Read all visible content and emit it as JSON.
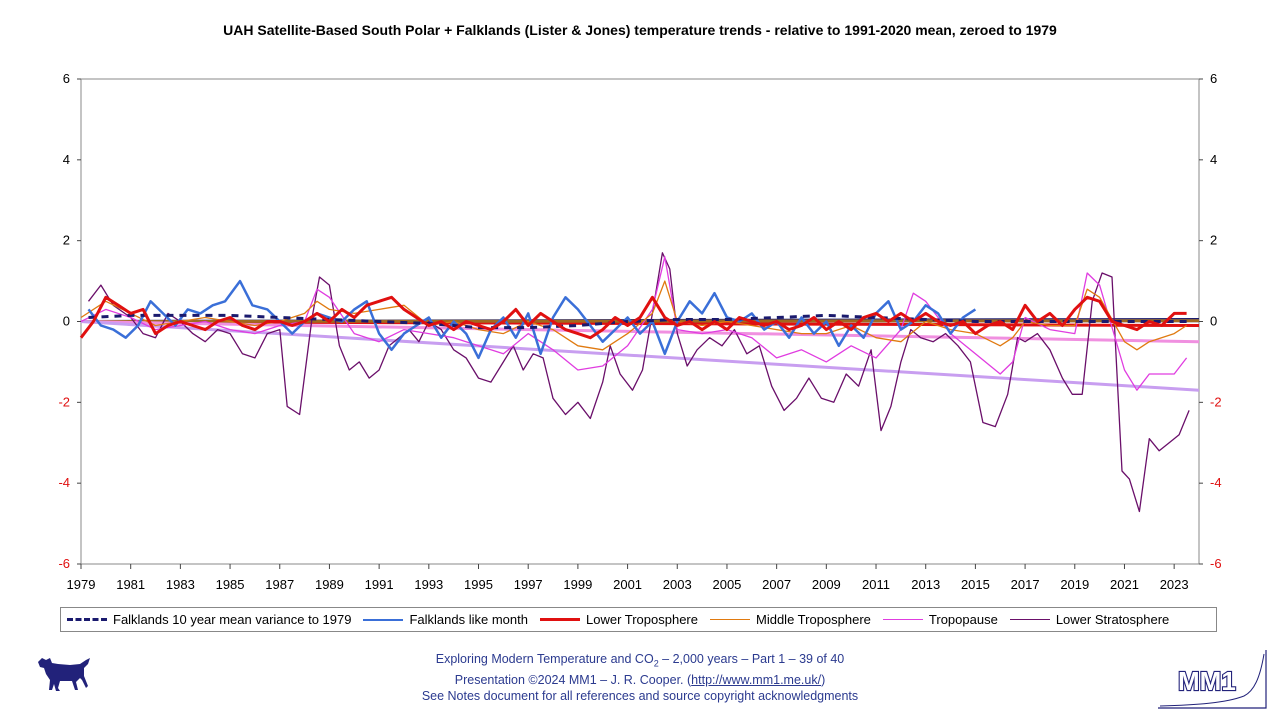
{
  "chart_data": {
    "type": "line",
    "title": "UAH Satellite-Based South Polar + Falklands (Lister & Jones) temperature trends - relative to 1991-2020 mean, zeroed to 1979",
    "xlim": [
      1979,
      2024
    ],
    "ylim": [
      -6,
      6
    ],
    "x_ticks": [
      "1979",
      "1981",
      "1983",
      "1985",
      "1987",
      "1989",
      "1991",
      "1993",
      "1995",
      "1997",
      "1999",
      "2001",
      "2003",
      "2005",
      "2007",
      "2009",
      "2011",
      "2013",
      "2015",
      "2017",
      "2019",
      "2021",
      "2023"
    ],
    "y_ticks_left": [
      "6",
      "4",
      "2",
      "0",
      "-2",
      "-4",
      "-6"
    ],
    "y_ticks_right": [
      "6",
      "4",
      "2",
      "0",
      "-2",
      "-4",
      "-6"
    ],
    "grid": "vertical",
    "legend_position": "bottom",
    "series": [
      {
        "name": "Falklands 10 year mean variance to 1979",
        "color": "#1a1a6e",
        "style": "dashed",
        "width": 3,
        "x": [
          1979.3,
          1981,
          1983,
          1985,
          1987,
          1989,
          1991,
          1993,
          1995,
          1997,
          1999,
          2001,
          2003,
          2005,
          2007,
          2009,
          2011,
          2013,
          2015,
          2017,
          2019,
          2021,
          2023.5
        ],
        "y": [
          0.1,
          0.15,
          0.15,
          0.15,
          0.1,
          0.05,
          0.0,
          -0.05,
          -0.15,
          -0.15,
          -0.1,
          0.0,
          0.05,
          0.05,
          0.1,
          0.15,
          0.1,
          0.05,
          0.0,
          0.0,
          0.0,
          0.0,
          0.0
        ]
      },
      {
        "name": "Falklands like month",
        "color": "#3a6fd8",
        "style": "solid",
        "width": 2.5,
        "x": [
          1979.3,
          1979.8,
          1980.3,
          1980.8,
          1981.3,
          1981.8,
          1982.3,
          1982.8,
          1983.3,
          1983.8,
          1984.3,
          1984.8,
          1985.4,
          1985.9,
          1986.5,
          1987,
          1987.5,
          1988,
          1988.5,
          1989,
          1989.5,
          1990,
          1990.5,
          1991,
          1991.5,
          1992,
          1992.5,
          1993,
          1993.5,
          1994,
          1994.5,
          1995,
          1995.5,
          1996,
          1996.5,
          1997,
          1997.5,
          1998,
          1998.5,
          1999,
          1999.5,
          2000,
          2000.5,
          2001,
          2001.5,
          2002,
          2002.5,
          2003,
          2003.5,
          2004,
          2004.5,
          2005,
          2005.5,
          2006,
          2006.5,
          2007,
          2007.5,
          2008,
          2008.5,
          2009,
          2009.5,
          2010,
          2010.5,
          2011,
          2011.5,
          2012,
          2012.5,
          2013,
          2013.5,
          2014,
          2014.5,
          2015
        ],
        "y": [
          0.3,
          -0.1,
          -0.2,
          -0.4,
          -0.1,
          0.5,
          0.2,
          -0.1,
          0.3,
          0.2,
          0.4,
          0.5,
          1.0,
          0.4,
          0.3,
          0.0,
          -0.3,
          0.0,
          0.2,
          0.1,
          0.0,
          0.3,
          0.5,
          -0.3,
          -0.7,
          -0.3,
          -0.1,
          0.1,
          -0.4,
          0.0,
          -0.3,
          -0.9,
          -0.2,
          0.1,
          -0.4,
          0.2,
          -0.8,
          0.1,
          0.6,
          0.3,
          -0.1,
          -0.5,
          -0.2,
          0.1,
          -0.3,
          0.0,
          -0.8,
          0.0,
          0.5,
          0.2,
          0.7,
          0.1,
          0.0,
          0.2,
          -0.2,
          0.0,
          -0.4,
          0.1,
          -0.3,
          0.0,
          -0.6,
          -0.1,
          -0.4,
          0.2,
          0.5,
          -0.2,
          0.0,
          0.4,
          0.2,
          -0.3,
          0.1,
          0.3
        ]
      },
      {
        "name": "Lower Troposphere",
        "color": "#e01010",
        "style": "solid",
        "width": 3,
        "x": [
          1979,
          1979.5,
          1980,
          1980.5,
          1981,
          1981.5,
          1982,
          1982.5,
          1983,
          1983.5,
          1984,
          1984.5,
          1985,
          1985.5,
          1986,
          1986.5,
          1987,
          1987.5,
          1988,
          1988.5,
          1989,
          1989.5,
          1990,
          1990.5,
          1991,
          1991.5,
          1992,
          1992.5,
          1993,
          1993.5,
          1994,
          1994.5,
          1995,
          1995.5,
          1996,
          1996.5,
          1997,
          1997.5,
          1998,
          1998.5,
          1999,
          1999.5,
          2000,
          2000.5,
          2001,
          2001.5,
          2002,
          2002.5,
          2003,
          2003.5,
          2004,
          2004.5,
          2005,
          2005.5,
          2006,
          2006.5,
          2007,
          2007.5,
          2008,
          2008.5,
          2009,
          2009.5,
          2010,
          2010.5,
          2011,
          2011.5,
          2012,
          2012.5,
          2013,
          2013.5,
          2014,
          2014.5,
          2015,
          2015.5,
          2016,
          2016.5,
          2017,
          2017.5,
          2018,
          2018.5,
          2019,
          2019.5,
          2020,
          2020.5,
          2021,
          2021.5,
          2022,
          2022.5,
          2023,
          2023.5
        ],
        "y": [
          -0.4,
          0.0,
          0.6,
          0.4,
          0.2,
          0.3,
          -0.3,
          -0.1,
          0.0,
          -0.1,
          -0.2,
          0.0,
          0.1,
          -0.1,
          -0.2,
          0.0,
          0.0,
          -0.1,
          0.0,
          0.2,
          0.0,
          0.3,
          0.1,
          0.4,
          0.5,
          0.6,
          0.3,
          0.1,
          -0.1,
          0.0,
          -0.2,
          0.0,
          -0.1,
          -0.2,
          0.0,
          0.3,
          -0.1,
          0.2,
          0.0,
          -0.2,
          -0.3,
          -0.4,
          -0.2,
          0.1,
          -0.1,
          0.1,
          0.6,
          0.1,
          -0.1,
          0.0,
          -0.2,
          0.0,
          -0.2,
          0.1,
          0.0,
          -0.1,
          0.0,
          -0.2,
          -0.1,
          0.1,
          -0.2,
          0.0,
          -0.2,
          0.1,
          0.2,
          0.0,
          0.2,
          0.0,
          0.2,
          0.0,
          -0.1,
          0.0,
          -0.3,
          -0.1,
          0.0,
          -0.2,
          0.4,
          0.0,
          0.2,
          -0.1,
          0.3,
          0.6,
          0.5,
          0.0,
          -0.1,
          -0.2,
          0.0,
          -0.1,
          0.2,
          0.2
        ]
      },
      {
        "name": "Middle Troposphere",
        "color": "#e07a10",
        "style": "solid",
        "width": 1.3,
        "x": [
          1979,
          1980,
          1981,
          1982,
          1983,
          1984,
          1985,
          1986,
          1987,
          1988,
          1988.5,
          1989,
          1990,
          1991,
          1992,
          1993,
          1994,
          1995,
          1996,
          1997,
          1998,
          1999,
          2000,
          2001,
          2002,
          2002.5,
          2003,
          2004,
          2005,
          2006,
          2007,
          2008,
          2009,
          2010,
          2011,
          2012,
          2013,
          2014,
          2015,
          2016,
          2016.5,
          2017,
          2018,
          2019,
          2019.5,
          2020,
          2021,
          2021.5,
          2022,
          2023,
          2023.5
        ],
        "y": [
          0.1,
          0.5,
          0.2,
          -0.1,
          0.0,
          0.1,
          0.0,
          -0.1,
          0.0,
          0.2,
          0.5,
          0.3,
          0.2,
          0.3,
          0.4,
          -0.1,
          0.0,
          -0.2,
          -0.3,
          0.0,
          -0.2,
          -0.6,
          -0.7,
          -0.3,
          0.2,
          1.0,
          0.0,
          -0.1,
          0.0,
          -0.1,
          -0.2,
          -0.3,
          -0.3,
          -0.1,
          -0.4,
          -0.5,
          0.0,
          -0.2,
          -0.3,
          -0.6,
          -0.4,
          0.0,
          -0.1,
          -0.1,
          0.8,
          0.6,
          -0.5,
          -0.7,
          -0.5,
          -0.3,
          -0.1
        ]
      },
      {
        "name": "Tropopause",
        "color": "#e03ce0",
        "style": "solid",
        "width": 1.3,
        "x": [
          1979,
          1980,
          1981,
          1982,
          1983,
          1984,
          1985,
          1986,
          1987,
          1988,
          1988.5,
          1989,
          1990,
          1991,
          1992,
          1993,
          1994,
          1995,
          1996,
          1997,
          1998,
          1999,
          2000,
          2001,
          2002,
          2002.5,
          2003,
          2004,
          2005,
          2006,
          2007,
          2008,
          2009,
          2010,
          2011,
          2012,
          2012.5,
          2013,
          2014,
          2015,
          2016,
          2016.5,
          2017,
          2018,
          2019,
          2019.5,
          2020,
          2021,
          2021.5,
          2022,
          2023,
          2023.5
        ],
        "y": [
          0.0,
          0.3,
          0.1,
          -0.2,
          -0.1,
          0.0,
          -0.2,
          -0.3,
          -0.1,
          0.0,
          0.8,
          0.6,
          -0.3,
          -0.5,
          -0.2,
          -0.3,
          -0.4,
          -0.6,
          -0.8,
          -0.3,
          -0.7,
          -1.2,
          -1.1,
          -0.6,
          0.3,
          1.6,
          -0.2,
          -0.3,
          -0.2,
          -0.4,
          -0.9,
          -0.7,
          -1.0,
          -0.6,
          -0.9,
          -0.2,
          0.7,
          0.5,
          -0.3,
          -0.8,
          -1.3,
          -1.0,
          0.1,
          -0.2,
          -0.3,
          1.2,
          0.9,
          -1.2,
          -1.7,
          -1.3,
          -1.3,
          -0.9
        ]
      },
      {
        "name": "Lower Stratosphere",
        "color": "#6a0f6a",
        "style": "solid",
        "width": 1.3,
        "x": [
          1979.3,
          1979.8,
          1980.3,
          1981,
          1981.5,
          1982,
          1982.5,
          1983,
          1983.5,
          1984,
          1984.5,
          1985,
          1985.5,
          1986,
          1986.5,
          1987,
          1987.3,
          1987.8,
          1988.3,
          1988.6,
          1989,
          1989.4,
          1989.8,
          1990.2,
          1990.6,
          1991,
          1991.4,
          1991.8,
          1992.2,
          1992.6,
          1993,
          1993.5,
          1994,
          1994.5,
          1995,
          1995.5,
          1996,
          1996.4,
          1996.8,
          1997.2,
          1997.6,
          1998,
          1998.5,
          1999,
          1999.5,
          2000,
          2000.3,
          2000.7,
          2001.2,
          2001.6,
          2002,
          2002.4,
          2002.7,
          2003,
          2003.4,
          2003.8,
          2004.3,
          2004.8,
          2005.3,
          2005.8,
          2006.3,
          2006.8,
          2007.3,
          2007.8,
          2008.3,
          2008.8,
          2009.3,
          2009.8,
          2010.3,
          2010.8,
          2011.2,
          2011.6,
          2012,
          2012.4,
          2012.8,
          2013.3,
          2013.8,
          2014.3,
          2014.8,
          2015.3,
          2015.8,
          2016.3,
          2016.7,
          2017,
          2017.5,
          2018,
          2018.5,
          2018.9,
          2019.3,
          2019.7,
          2020.1,
          2020.5,
          2020.9,
          2021.2,
          2021.6,
          2022,
          2022.4,
          2022.8,
          2023.2,
          2023.6
        ],
        "y": [
          0.5,
          0.9,
          0.4,
          0.1,
          -0.3,
          -0.4,
          0.2,
          0.0,
          -0.3,
          -0.5,
          -0.2,
          -0.3,
          -0.8,
          -0.9,
          -0.3,
          -0.2,
          -2.1,
          -2.3,
          0.1,
          1.1,
          0.9,
          -0.6,
          -1.2,
          -1.0,
          -1.4,
          -1.2,
          -0.6,
          -0.4,
          -0.2,
          -0.5,
          0.0,
          -0.2,
          -0.7,
          -0.9,
          -1.4,
          -1.5,
          -1.0,
          -0.6,
          -1.2,
          -0.8,
          -0.9,
          -1.9,
          -2.3,
          -2.0,
          -2.4,
          -1.5,
          -0.6,
          -1.3,
          -1.7,
          -1.2,
          0.2,
          1.7,
          1.3,
          -0.3,
          -1.1,
          -0.7,
          -0.4,
          -0.6,
          -0.2,
          -0.8,
          -0.6,
          -1.6,
          -2.2,
          -1.9,
          -1.4,
          -1.9,
          -2.0,
          -1.3,
          -1.6,
          -0.7,
          -2.7,
          -2.1,
          -1.0,
          -0.2,
          -0.4,
          -0.5,
          -0.3,
          -0.6,
          -1.0,
          -2.5,
          -2.6,
          -1.8,
          -0.4,
          -0.5,
          -0.3,
          -0.7,
          -1.4,
          -1.8,
          -1.8,
          0.5,
          1.2,
          1.1,
          -3.7,
          -3.9,
          -4.7,
          -2.9,
          -3.2,
          -3.0,
          -2.8,
          -2.2
        ]
      }
    ],
    "trend_lines": [
      {
        "series": "Falklands 10 year mean variance to 1979",
        "color": "#1a1a6e",
        "y_start": 0.0,
        "y_end": 0.05
      },
      {
        "series": "Falklands like month",
        "color": "#3a6fd8",
        "y_start": 0.0,
        "y_end": 0.02
      },
      {
        "series": "Lower Troposphere",
        "color": "#e01010",
        "y_start": 0.0,
        "y_end": -0.1
      },
      {
        "series": "Middle Troposphere",
        "color": "#a06a20",
        "y_start": 0.0,
        "y_end": 0.02
      },
      {
        "series": "Tropopause",
        "color": "#f090e0",
        "y_start": 0.0,
        "y_end": -0.5
      },
      {
        "series": "Lower Stratosphere",
        "color": "#c89ef0",
        "y_start": 0.0,
        "y_end": -1.7
      }
    ]
  },
  "footer": {
    "line1_pre": "Exploring Modern Temperature and CO",
    "line1_sub": "2",
    "line1_post": " – 2,000 years – Part 1 – 39 of 40",
    "line2_pre": "Presentation ©2024 MM1 – J. R. Cooper. (",
    "line2_link": "http://www.mm1.me.uk/",
    "line2_post": ")",
    "line3": "See Notes document for all references and source copyright acknowledgments"
  },
  "logos": {
    "mm1_text": "MM1",
    "dog_icon": "dog-silhouette-icon",
    "dog_color": "#22227a",
    "mm1_color": "#22227a"
  }
}
